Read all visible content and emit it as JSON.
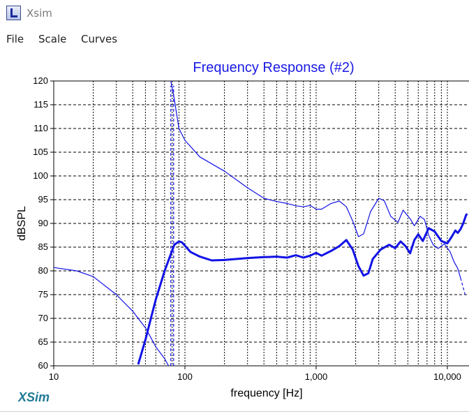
{
  "window": {
    "title": "Xsim",
    "icon": "xsim-app-icon"
  },
  "menu": {
    "items": [
      "File",
      "Scale",
      "Curves"
    ]
  },
  "brand": "XSim",
  "colors": {
    "curve": "#1212e6",
    "title": "#1a1ae6",
    "grid": "#000000",
    "brand": "#1f7a96"
  },
  "chart_data": {
    "type": "line",
    "title": "Frequency Response (#2)",
    "xlabel": "frequency [Hz]",
    "ylabel": "dBSPL",
    "xscale": "log",
    "xlim": [
      10,
      12600
    ],
    "ylim": [
      60,
      120
    ],
    "xticks": [
      {
        "value": 10,
        "label": "10"
      },
      {
        "value": 100,
        "label": "100"
      },
      {
        "value": 1000,
        "label": "1,000"
      },
      {
        "value": 10000,
        "label": "10,000"
      }
    ],
    "yticks": [
      60,
      65,
      70,
      75,
      80,
      85,
      90,
      95,
      100,
      105,
      110,
      115,
      120
    ],
    "grid": true,
    "series": [
      {
        "style": "thin",
        "points": [
          [
            10,
            80.7
          ],
          [
            15,
            80
          ],
          [
            20,
            78.8
          ],
          [
            30,
            75
          ],
          [
            40,
            71.5
          ],
          [
            50,
            68
          ],
          [
            60,
            64
          ],
          [
            70,
            61.5
          ],
          [
            75,
            60
          ]
        ]
      },
      {
        "style": "thin",
        "points": [
          [
            78,
            120
          ],
          [
            82,
            117
          ],
          [
            90,
            110
          ],
          [
            100,
            107.5
          ],
          [
            130,
            104
          ],
          [
            200,
            101
          ],
          [
            300,
            97.5
          ],
          [
            400,
            95.3
          ],
          [
            500,
            94.6
          ],
          [
            600,
            94.2
          ],
          [
            700,
            93.7
          ],
          [
            800,
            93.5
          ],
          [
            900,
            93.8
          ],
          [
            1000,
            93.0
          ],
          [
            1100,
            93.0
          ],
          [
            1300,
            94.2
          ],
          [
            1500,
            94.7
          ],
          [
            1700,
            93.5
          ],
          [
            1900,
            90.5
          ],
          [
            2100,
            87.2
          ],
          [
            2300,
            87.8
          ],
          [
            2600,
            92.5
          ],
          [
            3000,
            95.3
          ],
          [
            3300,
            94.8
          ],
          [
            3700,
            91.5
          ],
          [
            4200,
            90.2
          ],
          [
            4600,
            92.8
          ],
          [
            5200,
            91.0
          ],
          [
            5600,
            89.5
          ],
          [
            6200,
            91.5
          ],
          [
            6700,
            90.8
          ],
          [
            7200,
            87.5
          ],
          [
            7800,
            85.5
          ],
          [
            8500,
            84.7
          ],
          [
            9500,
            85.7
          ],
          [
            10500,
            84.0
          ],
          [
            11200,
            82.0
          ],
          [
            12000,
            80.5
          ],
          [
            12600,
            78.5
          ]
        ]
      },
      {
        "style": "dashed",
        "points": [
          [
            12600,
            78.5
          ],
          [
            13200,
            76.5
          ],
          [
            13800,
            74.5
          ]
        ]
      },
      {
        "style": "dashed",
        "points": [
          [
            78,
            60
          ],
          [
            78,
            119
          ]
        ]
      },
      {
        "style": "dashed",
        "points": [
          [
            82,
            60
          ],
          [
            82,
            119
          ]
        ]
      },
      {
        "style": "thick",
        "points": [
          [
            44,
            60.3
          ],
          [
            50,
            65.5
          ],
          [
            55,
            70
          ],
          [
            60,
            74
          ],
          [
            70,
            80
          ],
          [
            78,
            83.5
          ],
          [
            83,
            85.5
          ],
          [
            90,
            86.2
          ],
          [
            95,
            86.0
          ],
          [
            110,
            84.0
          ],
          [
            130,
            83
          ],
          [
            160,
            82.2
          ],
          [
            200,
            82.3
          ],
          [
            300,
            82.7
          ],
          [
            400,
            82.9
          ],
          [
            500,
            83.0
          ],
          [
            600,
            82.8
          ],
          [
            700,
            83.3
          ],
          [
            800,
            82.8
          ],
          [
            900,
            83.2
          ],
          [
            1000,
            83.8
          ],
          [
            1100,
            83.2
          ],
          [
            1300,
            84.2
          ],
          [
            1500,
            85.2
          ],
          [
            1700,
            86.5
          ],
          [
            1900,
            84.5
          ],
          [
            2100,
            81.0
          ],
          [
            2300,
            79.0
          ],
          [
            2500,
            79.5
          ],
          [
            2700,
            82.5
          ],
          [
            3100,
            84.5
          ],
          [
            3600,
            85.5
          ],
          [
            4000,
            84.8
          ],
          [
            4400,
            86.2
          ],
          [
            4800,
            85.2
          ],
          [
            5200,
            83.7
          ],
          [
            5600,
            86.5
          ],
          [
            6000,
            87.7
          ],
          [
            6500,
            86.3
          ],
          [
            7200,
            89.0
          ],
          [
            8000,
            88.3
          ],
          [
            9000,
            86.3
          ],
          [
            10000,
            85.8
          ],
          [
            10800,
            87.2
          ],
          [
            11500,
            88.5
          ],
          [
            12000,
            88.0
          ],
          [
            12600,
            88.8
          ]
        ]
      },
      {
        "style": "thick",
        "points": [
          [
            12600,
            88.8
          ],
          [
            13200,
            90.0
          ],
          [
            13900,
            91.8
          ],
          [
            14200,
            92.0
          ]
        ]
      }
    ]
  }
}
